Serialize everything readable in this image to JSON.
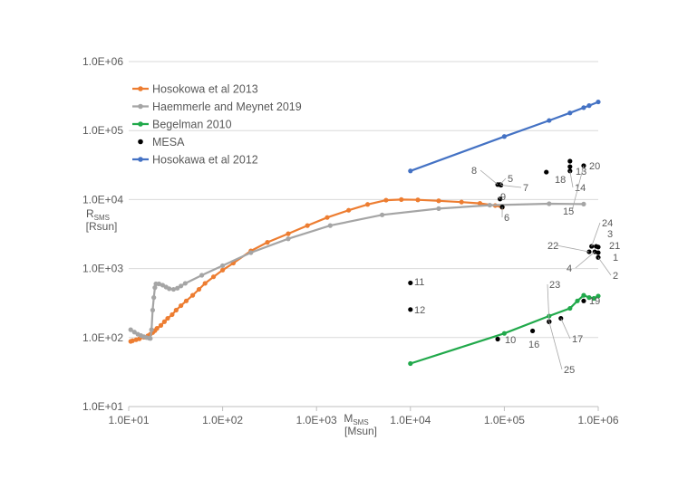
{
  "chart_data": {
    "type": "scatter",
    "x_scale": "log",
    "y_scale": "log",
    "xlim": [
      10,
      1000000
    ],
    "ylim": [
      10,
      1000000
    ],
    "x_ticks": [
      "1.0E+01",
      "1.0E+02",
      "1.0E+03",
      "1.0E+04",
      "1.0E+05",
      "1.0E+06"
    ],
    "y_ticks": [
      "1.0E+01",
      "1.0E+02",
      "1.0E+03",
      "1.0E+04",
      "1.0E+05",
      "1.0E+06"
    ],
    "xlabel_main": "M",
    "xlabel_sub": "SMS",
    "xlabel_unit": "[Msun]",
    "ylabel_main": "R",
    "ylabel_sub": "SMS",
    "ylabel_unit": "[Rsun]",
    "grid": "horizontal",
    "legend_position": "top-left",
    "series": [
      {
        "name": "Hosokowa et al 2013",
        "color": "#ED7D31",
        "style": "line-markers",
        "points": [
          [
            10.5,
            88
          ],
          [
            11,
            90
          ],
          [
            12,
            93
          ],
          [
            13,
            96
          ],
          [
            14.5,
            101
          ],
          [
            16,
            106
          ],
          [
            17,
            112
          ],
          [
            18,
            118
          ],
          [
            19,
            126
          ],
          [
            20,
            136
          ],
          [
            22,
            150
          ],
          [
            24,
            170
          ],
          [
            26,
            190
          ],
          [
            29,
            215
          ],
          [
            32,
            250
          ],
          [
            36,
            290
          ],
          [
            41,
            340
          ],
          [
            48,
            410
          ],
          [
            56,
            500
          ],
          [
            65,
            610
          ],
          [
            80,
            760
          ],
          [
            100,
            950
          ],
          [
            130,
            1200
          ],
          [
            200,
            1800
          ],
          [
            300,
            2400
          ],
          [
            500,
            3200
          ],
          [
            800,
            4200
          ],
          [
            1300,
            5500
          ],
          [
            2200,
            7000
          ],
          [
            3500,
            8500
          ],
          [
            5500,
            9800
          ],
          [
            8000,
            10000
          ],
          [
            12000,
            9900
          ],
          [
            20000,
            9600
          ],
          [
            35000,
            9200
          ],
          [
            55000,
            8800
          ],
          [
            80000,
            8200
          ],
          [
            95000,
            7700
          ]
        ]
      },
      {
        "name": "Haemmerle and Meynet 2019",
        "color": "#A5A5A5",
        "style": "line-markers",
        "points": [
          [
            10.5,
            130
          ],
          [
            11.5,
            120
          ],
          [
            12.5,
            112
          ],
          [
            13.5,
            107
          ],
          [
            14.5,
            103
          ],
          [
            15.5,
            100
          ],
          [
            16.5,
            98
          ],
          [
            17,
            97
          ],
          [
            17.5,
            130
          ],
          [
            18,
            250
          ],
          [
            18.5,
            380
          ],
          [
            19,
            530
          ],
          [
            19.5,
            600
          ],
          [
            21,
            600
          ],
          [
            23,
            575
          ],
          [
            25,
            540
          ],
          [
            27,
            510
          ],
          [
            30,
            500
          ],
          [
            33,
            520
          ],
          [
            36,
            560
          ],
          [
            40,
            610
          ],
          [
            60,
            800
          ],
          [
            100,
            1100
          ],
          [
            200,
            1700
          ],
          [
            500,
            2700
          ],
          [
            1400,
            4200
          ],
          [
            5000,
            6000
          ],
          [
            20000,
            7400
          ],
          [
            70000,
            8300
          ],
          [
            300000,
            8700
          ],
          [
            700000,
            8600
          ]
        ]
      },
      {
        "name": "Begelman 2010",
        "color": "#21A94B",
        "style": "line-markers",
        "points": [
          [
            10000,
            42
          ],
          [
            100000,
            115
          ],
          [
            300000,
            205
          ],
          [
            500000,
            265
          ],
          [
            600000,
            340
          ],
          [
            700000,
            410
          ],
          [
            800000,
            380
          ],
          [
            900000,
            370
          ],
          [
            1000000,
            400
          ]
        ]
      },
      {
        "name": "MESA",
        "color": "#000000",
        "style": "markers",
        "points": [
          {
            "x": 10000,
            "y": 620,
            "label": "11"
          },
          {
            "x": 10000,
            "y": 255,
            "label": "12"
          },
          {
            "x": 85000,
            "y": 95,
            "label": "10"
          },
          {
            "x": 85000,
            "y": 16500,
            "label": "8"
          },
          {
            "x": 90000,
            "y": 16500,
            "label": "5"
          },
          {
            "x": 92000,
            "y": 16200,
            "label": "7"
          },
          {
            "x": 90000,
            "y": 10200,
            "label": "9"
          },
          {
            "x": 95000,
            "y": 7800,
            "label": "6"
          },
          {
            "x": 200000,
            "y": 125,
            "label": "16"
          },
          {
            "x": 280000,
            "y": 25000,
            "label": "18"
          },
          {
            "x": 300000,
            "y": 170,
            "label": "23"
          },
          {
            "x": 400000,
            "y": 190,
            "label": "17"
          },
          {
            "x": 500000,
            "y": 36000,
            "label": "20"
          },
          {
            "x": 500000,
            "y": 30000,
            "label": "13"
          },
          {
            "x": 500000,
            "y": 26000,
            "label": "14"
          },
          {
            "x": 700000,
            "y": 31000,
            "label": "15"
          },
          {
            "x": 700000,
            "y": 340,
            "label": "19"
          },
          {
            "x": 800000,
            "y": 1750,
            "label": "22"
          },
          {
            "x": 850000,
            "y": 2100,
            "label": "24"
          },
          {
            "x": 950000,
            "y": 2100,
            "label": "3"
          },
          {
            "x": 1000000,
            "y": 2050,
            "label": "21"
          },
          {
            "x": 1000000,
            "y": 1700,
            "label": "1"
          },
          {
            "x": 1000000,
            "y": 1450,
            "label": "2"
          },
          {
            "x": 920000,
            "y": 1750,
            "label": "4"
          },
          {
            "x": 300000,
            "y": 170,
            "label": "25"
          }
        ]
      },
      {
        "name": "Hosokawa et al 2012",
        "color": "#4472C4",
        "style": "line-markers",
        "points": [
          [
            10000,
            26000
          ],
          [
            100000,
            82000
          ],
          [
            300000,
            140000
          ],
          [
            500000,
            180000
          ],
          [
            700000,
            215000
          ],
          [
            800000,
            230000
          ],
          [
            1000000,
            260000
          ]
        ]
      }
    ]
  }
}
